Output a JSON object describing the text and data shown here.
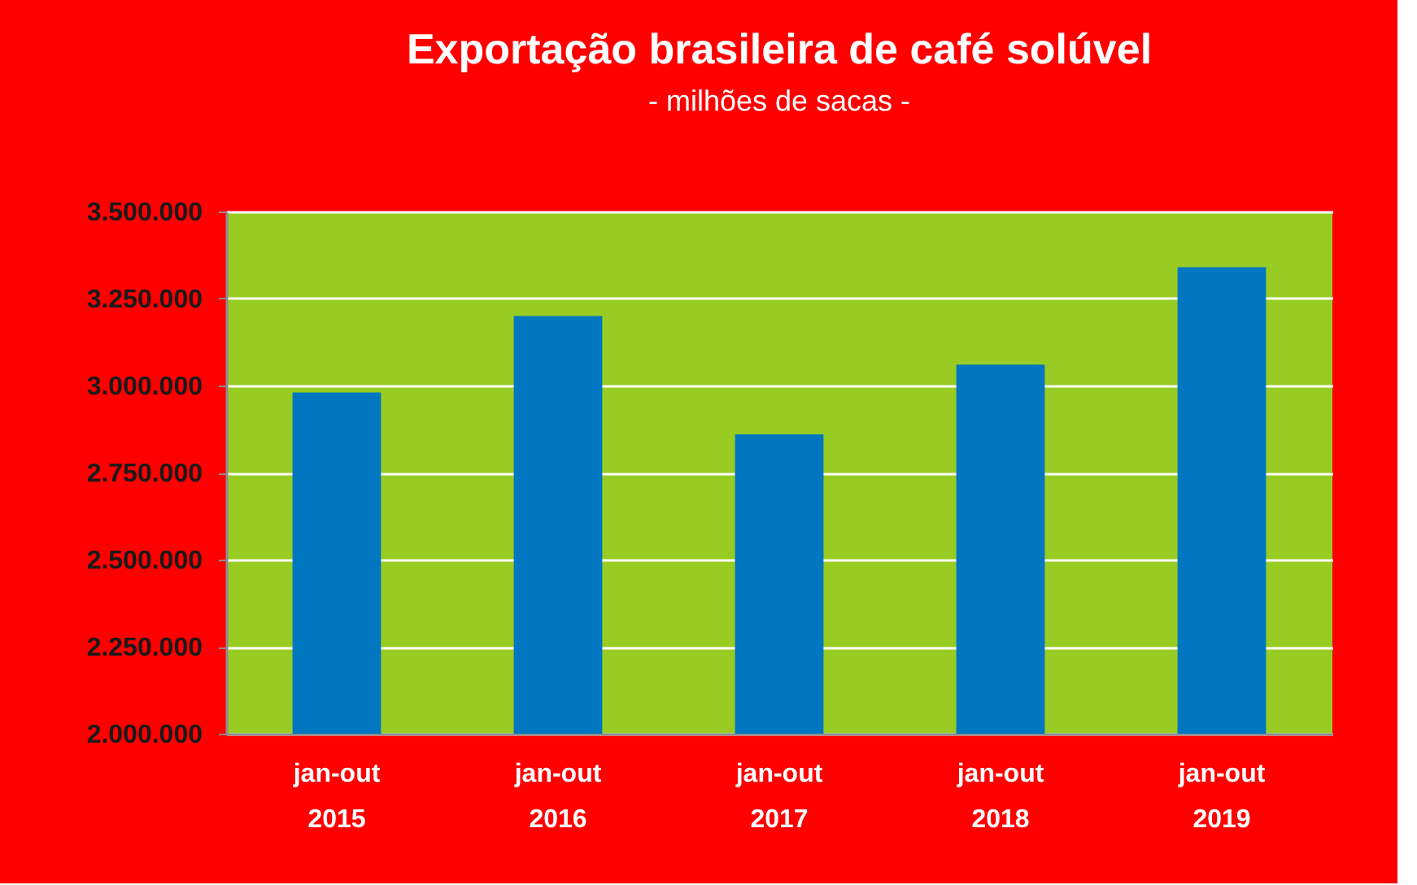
{
  "chart_data": {
    "type": "bar",
    "title": "Exportação brasileira de café solúvel",
    "subtitle": "- milhões de sacas -",
    "categories": [
      "jan-out\n2015",
      "jan-out\n2016",
      "jan-out\n2017",
      "jan-out\n2018",
      "jan-out\n2019"
    ],
    "values": [
      2980000,
      3200000,
      2860000,
      3060000,
      3340000
    ],
    "color": "#0077c0",
    "ylim": [
      2000000,
      3500000
    ],
    "yticks": [
      {
        "value": 2000000,
        "label": "2.000.000"
      },
      {
        "value": 2250000,
        "label": "2.250.000"
      },
      {
        "value": 2500000,
        "label": "2.500.000"
      },
      {
        "value": 2750000,
        "label": "2.750.000"
      },
      {
        "value": 3000000,
        "label": "3.000.000"
      },
      {
        "value": 3250000,
        "label": "3.250.000"
      },
      {
        "value": 3500000,
        "label": "3.500.000"
      }
    ],
    "grid": "y"
  }
}
